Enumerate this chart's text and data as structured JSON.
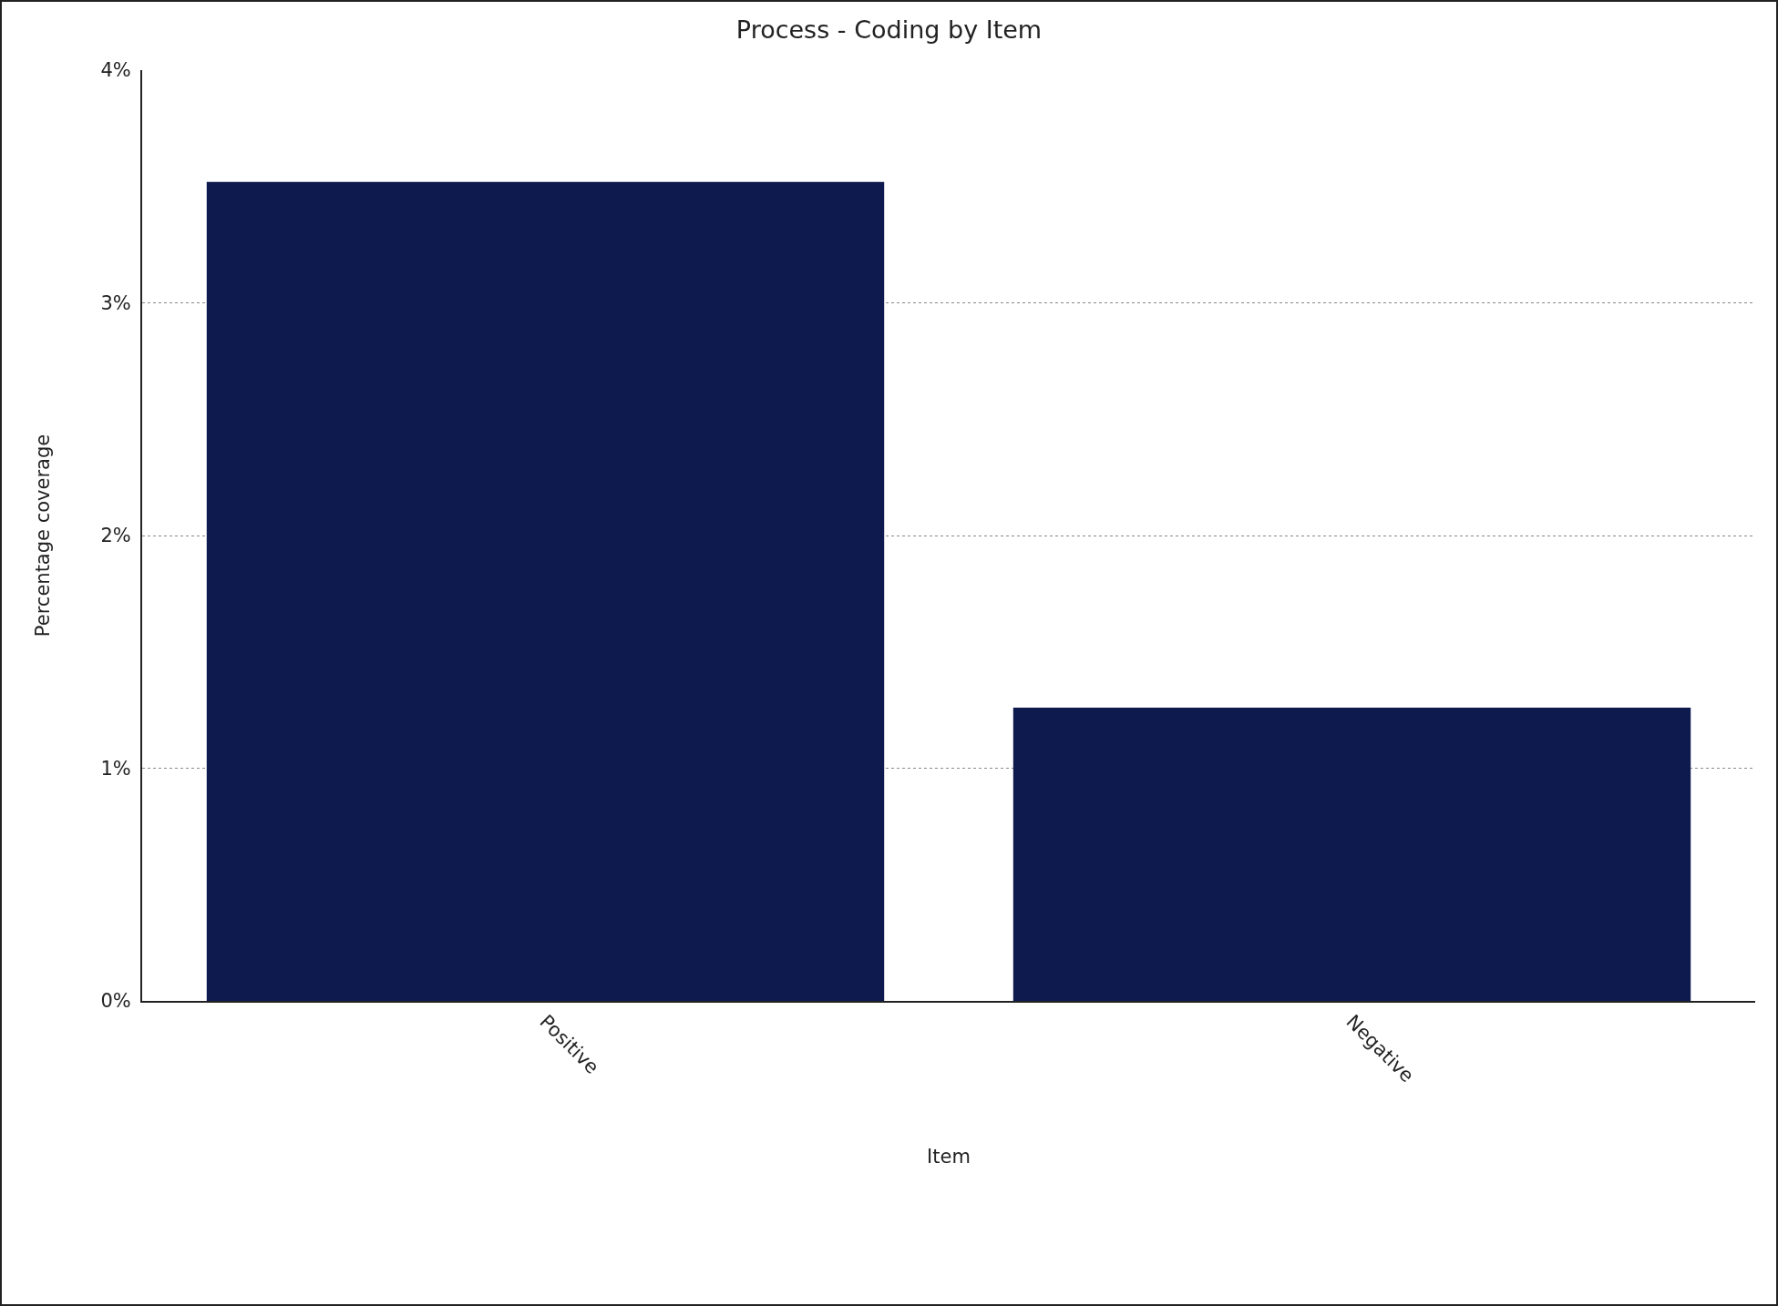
{
  "chart_data": {
    "type": "bar",
    "title": "Process - Coding by Item",
    "xlabel": "Item",
    "ylabel": "Percentage coverage",
    "categories": [
      "Positive",
      "Negative"
    ],
    "values": [
      3.52,
      1.26
    ],
    "color": "#0e1a4e",
    "ylim": [
      0,
      4
    ],
    "yticks": [
      {
        "value": 0,
        "label": "0%"
      },
      {
        "value": 1,
        "label": "1%"
      },
      {
        "value": 2,
        "label": "2%"
      },
      {
        "value": 3,
        "label": "3%"
      },
      {
        "value": 4,
        "label": "4%"
      }
    ],
    "grid": "y"
  }
}
